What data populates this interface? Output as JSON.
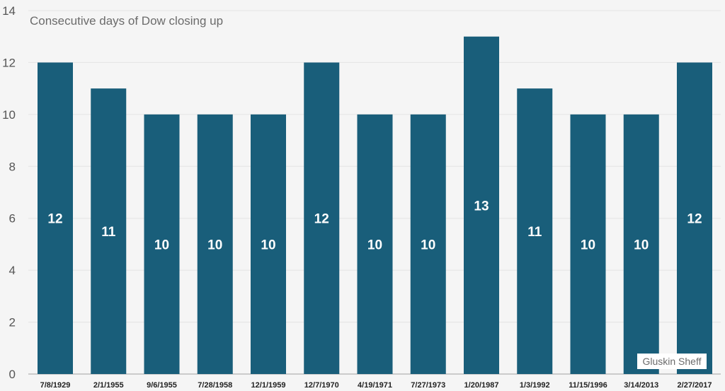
{
  "chart_data": {
    "type": "bar",
    "title": "Consecutive days of Dow closing up",
    "xlabel": "",
    "ylabel": "",
    "ylim": [
      0,
      14
    ],
    "yticks": [
      0,
      2,
      4,
      6,
      8,
      10,
      12,
      14
    ],
    "grid": true,
    "categories": [
      "7/8/1929",
      "2/1/1955",
      "9/6/1955",
      "7/28/1958",
      "12/1/1959",
      "12/7/1970",
      "4/19/1971",
      "7/27/1973",
      "1/20/1987",
      "1/3/1992",
      "11/15/1996",
      "3/14/2013",
      "2/27/2017"
    ],
    "values": [
      12,
      11,
      10,
      10,
      10,
      12,
      10,
      10,
      13,
      11,
      10,
      10,
      12
    ],
    "bar_color": "#195e7a",
    "source": "Gluskin Sheff"
  }
}
